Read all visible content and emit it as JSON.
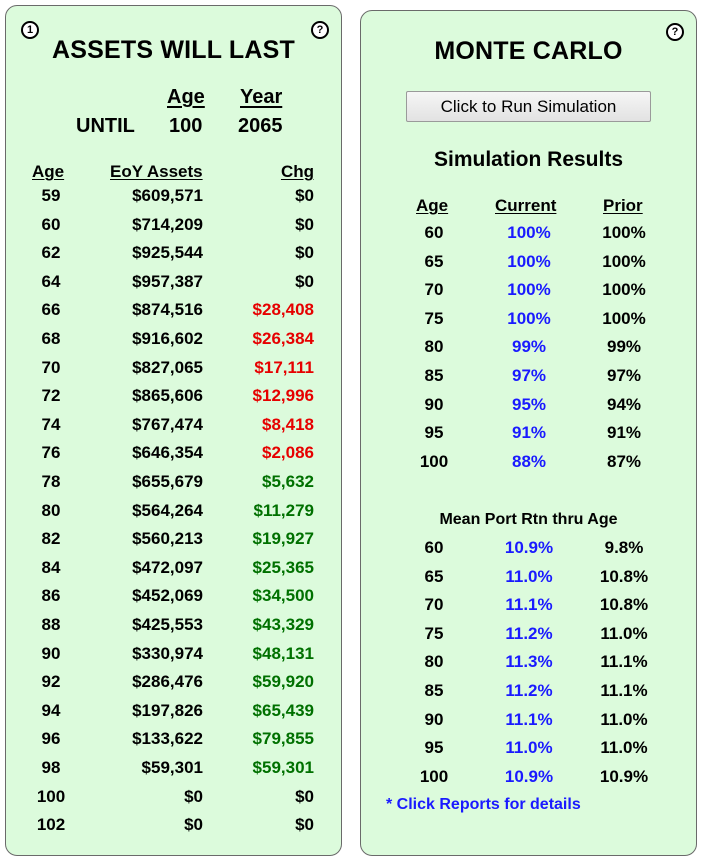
{
  "left_panel": {
    "title": "ASSETS WILL LAST",
    "info_icon_label": "1",
    "help_icon_label": "?",
    "until_label": "UNTIL",
    "age_header": "Age",
    "year_header": "Year",
    "until_age": "100",
    "until_year": "2065",
    "columns": [
      "Age",
      "EoY Assets",
      "Chg"
    ],
    "rows": [
      {
        "age": "59",
        "assets": "$609,571",
        "chg": "$0",
        "tone": "zero"
      },
      {
        "age": "60",
        "assets": "$714,209",
        "chg": "$0",
        "tone": "zero"
      },
      {
        "age": "62",
        "assets": "$925,544",
        "chg": "$0",
        "tone": "zero"
      },
      {
        "age": "64",
        "assets": "$957,387",
        "chg": "$0",
        "tone": "zero"
      },
      {
        "age": "66",
        "assets": "$874,516",
        "chg": "$28,408",
        "tone": "neg"
      },
      {
        "age": "68",
        "assets": "$916,602",
        "chg": "$26,384",
        "tone": "neg"
      },
      {
        "age": "70",
        "assets": "$827,065",
        "chg": "$17,111",
        "tone": "neg"
      },
      {
        "age": "72",
        "assets": "$865,606",
        "chg": "$12,996",
        "tone": "neg"
      },
      {
        "age": "74",
        "assets": "$767,474",
        "chg": "$8,418",
        "tone": "neg"
      },
      {
        "age": "76",
        "assets": "$646,354",
        "chg": "$2,086",
        "tone": "neg"
      },
      {
        "age": "78",
        "assets": "$655,679",
        "chg": "$5,632",
        "tone": "pos"
      },
      {
        "age": "80",
        "assets": "$564,264",
        "chg": "$11,279",
        "tone": "pos"
      },
      {
        "age": "82",
        "assets": "$560,213",
        "chg": "$19,927",
        "tone": "pos"
      },
      {
        "age": "84",
        "assets": "$472,097",
        "chg": "$25,365",
        "tone": "pos"
      },
      {
        "age": "86",
        "assets": "$452,069",
        "chg": "$34,500",
        "tone": "pos"
      },
      {
        "age": "88",
        "assets": "$425,553",
        "chg": "$43,329",
        "tone": "pos"
      },
      {
        "age": "90",
        "assets": "$330,974",
        "chg": "$48,131",
        "tone": "pos"
      },
      {
        "age": "92",
        "assets": "$286,476",
        "chg": "$59,920",
        "tone": "pos"
      },
      {
        "age": "94",
        "assets": "$197,826",
        "chg": "$65,439",
        "tone": "pos"
      },
      {
        "age": "96",
        "assets": "$133,622",
        "chg": "$79,855",
        "tone": "pos"
      },
      {
        "age": "98",
        "assets": "$59,301",
        "chg": "$59,301",
        "tone": "pos"
      },
      {
        "age": "100",
        "assets": "$0",
        "chg": "$0",
        "tone": "zero"
      },
      {
        "age": "102",
        "assets": "$0",
        "chg": "$0",
        "tone": "zero"
      }
    ]
  },
  "right_panel": {
    "title": "MONTE CARLO",
    "help_icon_label": "?",
    "run_button_label": "Click to Run Simulation",
    "results_title": "Simulation Results",
    "columns": [
      "Age",
      "Current",
      "Prior"
    ],
    "results": [
      {
        "age": "60",
        "current": "100%",
        "prior": "100%"
      },
      {
        "age": "65",
        "current": "100%",
        "prior": "100%"
      },
      {
        "age": "70",
        "current": "100%",
        "prior": "100%"
      },
      {
        "age": "75",
        "current": "100%",
        "prior": "100%"
      },
      {
        "age": "80",
        "current": "99%",
        "prior": "99%"
      },
      {
        "age": "85",
        "current": "97%",
        "prior": "97%"
      },
      {
        "age": "90",
        "current": "95%",
        "prior": "94%"
      },
      {
        "age": "95",
        "current": "91%",
        "prior": "91%"
      },
      {
        "age": "100",
        "current": "88%",
        "prior": "87%"
      }
    ],
    "mean_title": "Mean Port Rtn thru Age",
    "mean_returns": [
      {
        "age": "60",
        "current": "10.9%",
        "prior": "9.8%"
      },
      {
        "age": "65",
        "current": "11.0%",
        "prior": "10.8%"
      },
      {
        "age": "70",
        "current": "11.1%",
        "prior": "10.8%"
      },
      {
        "age": "75",
        "current": "11.2%",
        "prior": "11.0%"
      },
      {
        "age": "80",
        "current": "11.3%",
        "prior": "11.1%"
      },
      {
        "age": "85",
        "current": "11.2%",
        "prior": "11.1%"
      },
      {
        "age": "90",
        "current": "11.1%",
        "prior": "11.0%"
      },
      {
        "age": "95",
        "current": "11.0%",
        "prior": "11.0%"
      },
      {
        "age": "100",
        "current": "10.9%",
        "prior": "10.9%"
      }
    ],
    "note": "* Click Reports for details"
  },
  "colors": {
    "panel_bg": "#dcfbdc",
    "negative": "#e60000",
    "positive": "#007000",
    "current_blue": "#1a1aff"
  }
}
